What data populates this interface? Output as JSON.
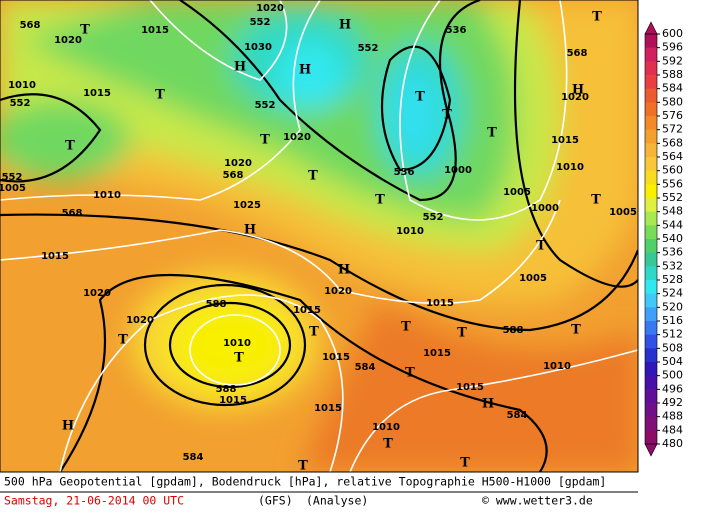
{
  "map": {
    "labels": [
      "568",
      "T",
      "1020",
      "1015",
      "552",
      "1030",
      "H",
      "H",
      "1020",
      "H",
      "552",
      "536",
      "T",
      "T",
      "T",
      "552",
      "1010",
      "552",
      "1015",
      "T",
      "552",
      "1005",
      "1010",
      "1020",
      "568",
      "T",
      "1020",
      "T",
      "536",
      "T",
      "552",
      "1010",
      "1000",
      "T",
      "1015",
      "1010",
      "568",
      "H",
      "1020",
      "T",
      "T",
      "1005",
      "1000",
      "T",
      "1005",
      "1005",
      "568",
      "1025",
      "H",
      "1015",
      "H",
      "1020",
      "1015",
      "1020",
      "588",
      "T",
      "1020",
      "1010",
      "T",
      "588",
      "1015",
      "1015",
      "T",
      "T",
      "T",
      "588",
      "T",
      "1015",
      "584",
      "1015",
      "T",
      "1010",
      "1015",
      "H",
      "584",
      "1015",
      "H",
      "1010",
      "T",
      "584",
      "T",
      "T"
    ]
  },
  "legend": {
    "ticks": [
      600,
      596,
      592,
      588,
      584,
      580,
      576,
      572,
      568,
      564,
      560,
      556,
      552,
      548,
      544,
      540,
      536,
      532,
      528,
      524,
      520,
      516,
      512,
      508,
      504,
      500,
      496,
      492,
      488,
      484,
      480
    ],
    "colors": [
      "#b0105a",
      "#d02060",
      "#e03050",
      "#e84040",
      "#ec5a30",
      "#f07028",
      "#f28a28",
      "#f4a030",
      "#f6b438",
      "#f8c838",
      "#f8dc20",
      "#f8f000",
      "#e0f040",
      "#a8e850",
      "#78dc58",
      "#50d068",
      "#38c898",
      "#30d8c8",
      "#30e8f0",
      "#40c8f8",
      "#40a0f8",
      "#3878f0",
      "#3050e8",
      "#2830d0",
      "#3018b8",
      "#4810a8",
      "#601098",
      "#701088",
      "#801078",
      "#8c0c68"
    ]
  },
  "footer": {
    "line1": "500 hPa Geopotential [gpdam], Bodendruck [hPa], relative Topographie H500-H1000 [gpdam]",
    "date": "Samstag, 21-06-2014  00 UTC",
    "model": "(GFS)",
    "kind": "(Analyse)",
    "copyright": "© www.wetter3.de"
  }
}
